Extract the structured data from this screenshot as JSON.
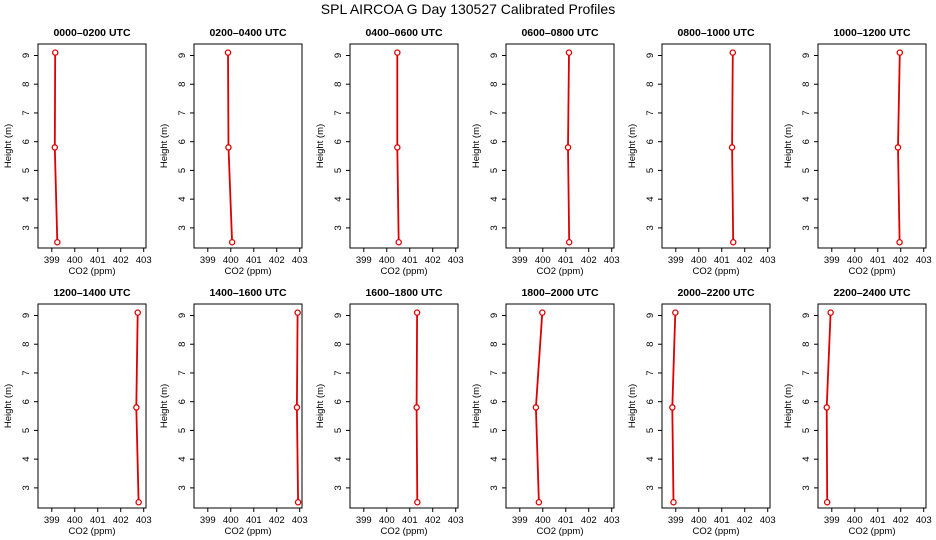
{
  "figure_title": "SPL AIRCOA G  Day 130527  Calibrated Profiles",
  "colors": {
    "line": "#dd0000",
    "axis": "#000000",
    "background": "#ffffff"
  },
  "chart_data": [
    {
      "type": "line",
      "title": "0000–0200 UTC",
      "xlabel": "CO2 (ppm)",
      "ylabel": "Height (m)",
      "xlim": [
        398.4,
        403.1
      ],
      "ylim": [
        2.3,
        9.4
      ],
      "xticks": [
        "399",
        "400",
        "401",
        "402",
        "403"
      ],
      "yticks": [
        "3",
        "4",
        "5",
        "6",
        "7",
        "8",
        "9"
      ],
      "series": [
        {
          "x": [
            399.24,
            399.13,
            399.15
          ],
          "y": [
            2.5,
            5.8,
            9.1
          ]
        }
      ]
    },
    {
      "type": "line",
      "title": "0200–0400 UTC",
      "xlabel": "CO2 (ppm)",
      "ylabel": "Height (m)",
      "xlim": [
        398.4,
        403.1
      ],
      "ylim": [
        2.3,
        9.4
      ],
      "xticks": [
        "399",
        "400",
        "401",
        "402",
        "403"
      ],
      "yticks": [
        "3",
        "4",
        "5",
        "6",
        "7",
        "8",
        "9"
      ],
      "series": [
        {
          "x": [
            400.06,
            399.9,
            399.88
          ],
          "y": [
            2.5,
            5.8,
            9.1
          ]
        }
      ]
    },
    {
      "type": "line",
      "title": "0400–0600 UTC",
      "xlabel": "CO2 (ppm)",
      "ylabel": "Height (m)",
      "xlim": [
        398.4,
        403.1
      ],
      "ylim": [
        2.3,
        9.4
      ],
      "xticks": [
        "399",
        "400",
        "401",
        "402",
        "403"
      ],
      "yticks": [
        "3",
        "4",
        "5",
        "6",
        "7",
        "8",
        "9"
      ],
      "series": [
        {
          "x": [
            400.52,
            400.46,
            400.46
          ],
          "y": [
            2.5,
            5.8,
            9.1
          ]
        }
      ]
    },
    {
      "type": "line",
      "title": "0600–0800 UTC",
      "xlabel": "CO2 (ppm)",
      "ylabel": "Height (m)",
      "xlim": [
        398.4,
        403.1
      ],
      "ylim": [
        2.3,
        9.4
      ],
      "xticks": [
        "399",
        "400",
        "401",
        "402",
        "403"
      ],
      "yticks": [
        "3",
        "4",
        "5",
        "6",
        "7",
        "8",
        "9"
      ],
      "series": [
        {
          "x": [
            401.15,
            401.1,
            401.14
          ],
          "y": [
            2.5,
            5.8,
            9.1
          ]
        }
      ]
    },
    {
      "type": "line",
      "title": "0800–1000 UTC",
      "xlabel": "CO2 (ppm)",
      "ylabel": "Height (m)",
      "xlim": [
        398.4,
        403.1
      ],
      "ylim": [
        2.3,
        9.4
      ],
      "xticks": [
        "399",
        "400",
        "401",
        "402",
        "403"
      ],
      "yticks": [
        "3",
        "4",
        "5",
        "6",
        "7",
        "8",
        "9"
      ],
      "series": [
        {
          "x": [
            401.5,
            401.45,
            401.48
          ],
          "y": [
            2.5,
            5.8,
            9.1
          ]
        }
      ]
    },
    {
      "type": "line",
      "title": "1000–1200 UTC",
      "xlabel": "CO2 (ppm)",
      "ylabel": "Height (m)",
      "xlim": [
        398.4,
        403.1
      ],
      "ylim": [
        2.3,
        9.4
      ],
      "xticks": [
        "399",
        "400",
        "401",
        "402",
        "403"
      ],
      "yticks": [
        "3",
        "4",
        "5",
        "6",
        "7",
        "8",
        "9"
      ],
      "series": [
        {
          "x": [
            401.95,
            401.88,
            401.96
          ],
          "y": [
            2.5,
            5.8,
            9.1
          ]
        }
      ]
    },
    {
      "type": "line",
      "title": "1200–1400 UTC",
      "xlabel": "CO2 (ppm)",
      "ylabel": "Height (m)",
      "xlim": [
        398.4,
        403.1
      ],
      "ylim": [
        2.3,
        9.4
      ],
      "xticks": [
        "399",
        "400",
        "401",
        "402",
        "403"
      ],
      "yticks": [
        "3",
        "4",
        "5",
        "6",
        "7",
        "8",
        "9"
      ],
      "series": [
        {
          "x": [
            402.78,
            402.68,
            402.74
          ],
          "y": [
            2.5,
            5.8,
            9.1
          ]
        }
      ]
    },
    {
      "type": "line",
      "title": "1400–1600 UTC",
      "xlabel": "CO2 (ppm)",
      "ylabel": "Height (m)",
      "xlim": [
        398.4,
        403.1
      ],
      "ylim": [
        2.3,
        9.4
      ],
      "xticks": [
        "399",
        "400",
        "401",
        "402",
        "403"
      ],
      "yticks": [
        "3",
        "4",
        "5",
        "6",
        "7",
        "8",
        "9"
      ],
      "series": [
        {
          "x": [
            402.93,
            402.88,
            402.91
          ],
          "y": [
            2.5,
            5.8,
            9.1
          ]
        }
      ]
    },
    {
      "type": "line",
      "title": "1600–1800 UTC",
      "xlabel": "CO2 (ppm)",
      "ylabel": "Height (m)",
      "xlim": [
        398.4,
        403.1
      ],
      "ylim": [
        2.3,
        9.4
      ],
      "xticks": [
        "399",
        "400",
        "401",
        "402",
        "403"
      ],
      "yticks": [
        "3",
        "4",
        "5",
        "6",
        "7",
        "8",
        "9"
      ],
      "series": [
        {
          "x": [
            401.33,
            401.3,
            401.32
          ],
          "y": [
            2.5,
            5.8,
            9.1
          ]
        }
      ]
    },
    {
      "type": "line",
      "title": "1800–2000 UTC",
      "xlabel": "CO2 (ppm)",
      "ylabel": "Height (m)",
      "xlim": [
        398.4,
        403.1
      ],
      "ylim": [
        2.3,
        9.4
      ],
      "xticks": [
        "399",
        "400",
        "401",
        "402",
        "403"
      ],
      "yticks": [
        "3",
        "4",
        "5",
        "6",
        "7",
        "8",
        "9"
      ],
      "series": [
        {
          "x": [
            399.83,
            399.7,
            399.98
          ],
          "y": [
            2.5,
            5.8,
            9.1
          ]
        }
      ]
    },
    {
      "type": "line",
      "title": "2000–2200 UTC",
      "xlabel": "CO2 (ppm)",
      "ylabel": "Height (m)",
      "xlim": [
        398.4,
        403.1
      ],
      "ylim": [
        2.3,
        9.4
      ],
      "xticks": [
        "399",
        "400",
        "401",
        "402",
        "403"
      ],
      "yticks": [
        "3",
        "4",
        "5",
        "6",
        "7",
        "8",
        "9"
      ],
      "series": [
        {
          "x": [
            398.9,
            398.85,
            398.98
          ],
          "y": [
            2.5,
            5.8,
            9.1
          ]
        }
      ]
    },
    {
      "type": "line",
      "title": "2200–2400 UTC",
      "xlabel": "CO2 (ppm)",
      "ylabel": "Height (m)",
      "xlim": [
        398.4,
        403.1
      ],
      "ylim": [
        2.3,
        9.4
      ],
      "xticks": [
        "399",
        "400",
        "401",
        "402",
        "403"
      ],
      "yticks": [
        "3",
        "4",
        "5",
        "6",
        "7",
        "8",
        "9"
      ],
      "series": [
        {
          "x": [
            398.8,
            398.78,
            398.95
          ],
          "y": [
            2.5,
            5.8,
            9.1
          ]
        }
      ]
    }
  ]
}
